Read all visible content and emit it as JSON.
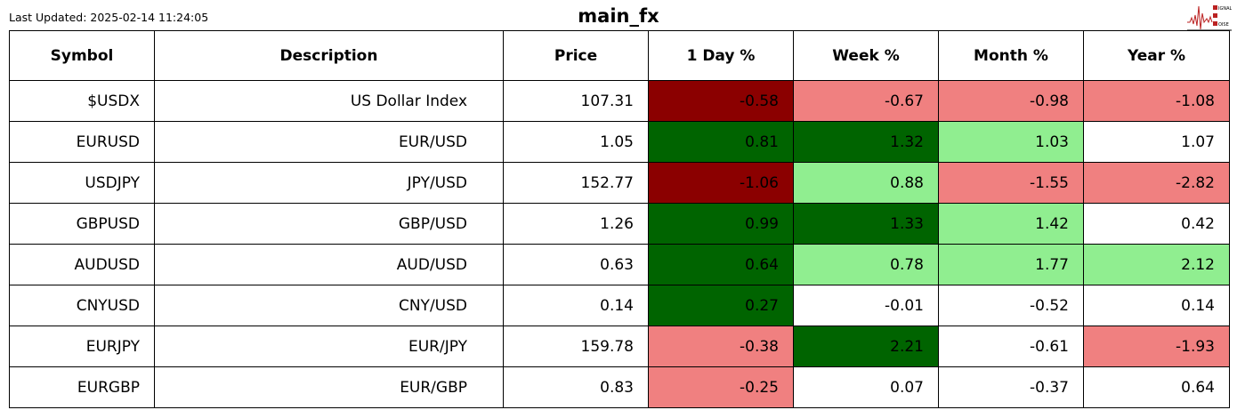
{
  "header": {
    "last_updated": "Last Updated: 2025-02-14 11:24:05",
    "title": "main_fx",
    "logo_text": "SIGNAL 2 NOISE"
  },
  "colors": {
    "dark_red": "#8b0000",
    "light_red": "#f08080",
    "dark_green": "#006400",
    "light_green": "#90ee90",
    "none": "#ffffff"
  },
  "table": {
    "columns": [
      "Symbol",
      "Description",
      "Price",
      "1 Day %",
      "Week %",
      "Month %",
      "Year %"
    ],
    "rows": [
      {
        "symbol": "$USDX",
        "description": "US Dollar Index",
        "price": "107.31",
        "changes": [
          "-0.58",
          "-0.67",
          "-0.98",
          "-1.08"
        ],
        "colors": [
          "dark_red",
          "light_red",
          "light_red",
          "light_red"
        ]
      },
      {
        "symbol": "EURUSD",
        "description": "EUR/USD",
        "price": "1.05",
        "changes": [
          "0.81",
          "1.32",
          "1.03",
          "1.07"
        ],
        "colors": [
          "dark_green",
          "dark_green",
          "light_green",
          "none"
        ]
      },
      {
        "symbol": "USDJPY",
        "description": "JPY/USD",
        "price": "152.77",
        "changes": [
          "-1.06",
          "0.88",
          "-1.55",
          "-2.82"
        ],
        "colors": [
          "dark_red",
          "light_green",
          "light_red",
          "light_red"
        ]
      },
      {
        "symbol": "GBPUSD",
        "description": "GBP/USD",
        "price": "1.26",
        "changes": [
          "0.99",
          "1.33",
          "1.42",
          "0.42"
        ],
        "colors": [
          "dark_green",
          "dark_green",
          "light_green",
          "none"
        ]
      },
      {
        "symbol": "AUDUSD",
        "description": "AUD/USD",
        "price": "0.63",
        "changes": [
          "0.64",
          "0.78",
          "1.77",
          "2.12"
        ],
        "colors": [
          "dark_green",
          "light_green",
          "light_green",
          "light_green"
        ]
      },
      {
        "symbol": "CNYUSD",
        "description": "CNY/USD",
        "price": "0.14",
        "changes": [
          "0.27",
          "-0.01",
          "-0.52",
          "0.14"
        ],
        "colors": [
          "dark_green",
          "none",
          "none",
          "none"
        ]
      },
      {
        "symbol": "EURJPY",
        "description": "EUR/JPY",
        "price": "159.78",
        "changes": [
          "-0.38",
          "2.21",
          "-0.61",
          "-1.93"
        ],
        "colors": [
          "light_red",
          "dark_green",
          "none",
          "light_red"
        ]
      },
      {
        "symbol": "EURGBP",
        "description": "EUR/GBP",
        "price": "0.83",
        "changes": [
          "-0.25",
          "0.07",
          "-0.37",
          "0.64"
        ],
        "colors": [
          "light_red",
          "none",
          "none",
          "none"
        ]
      }
    ]
  }
}
